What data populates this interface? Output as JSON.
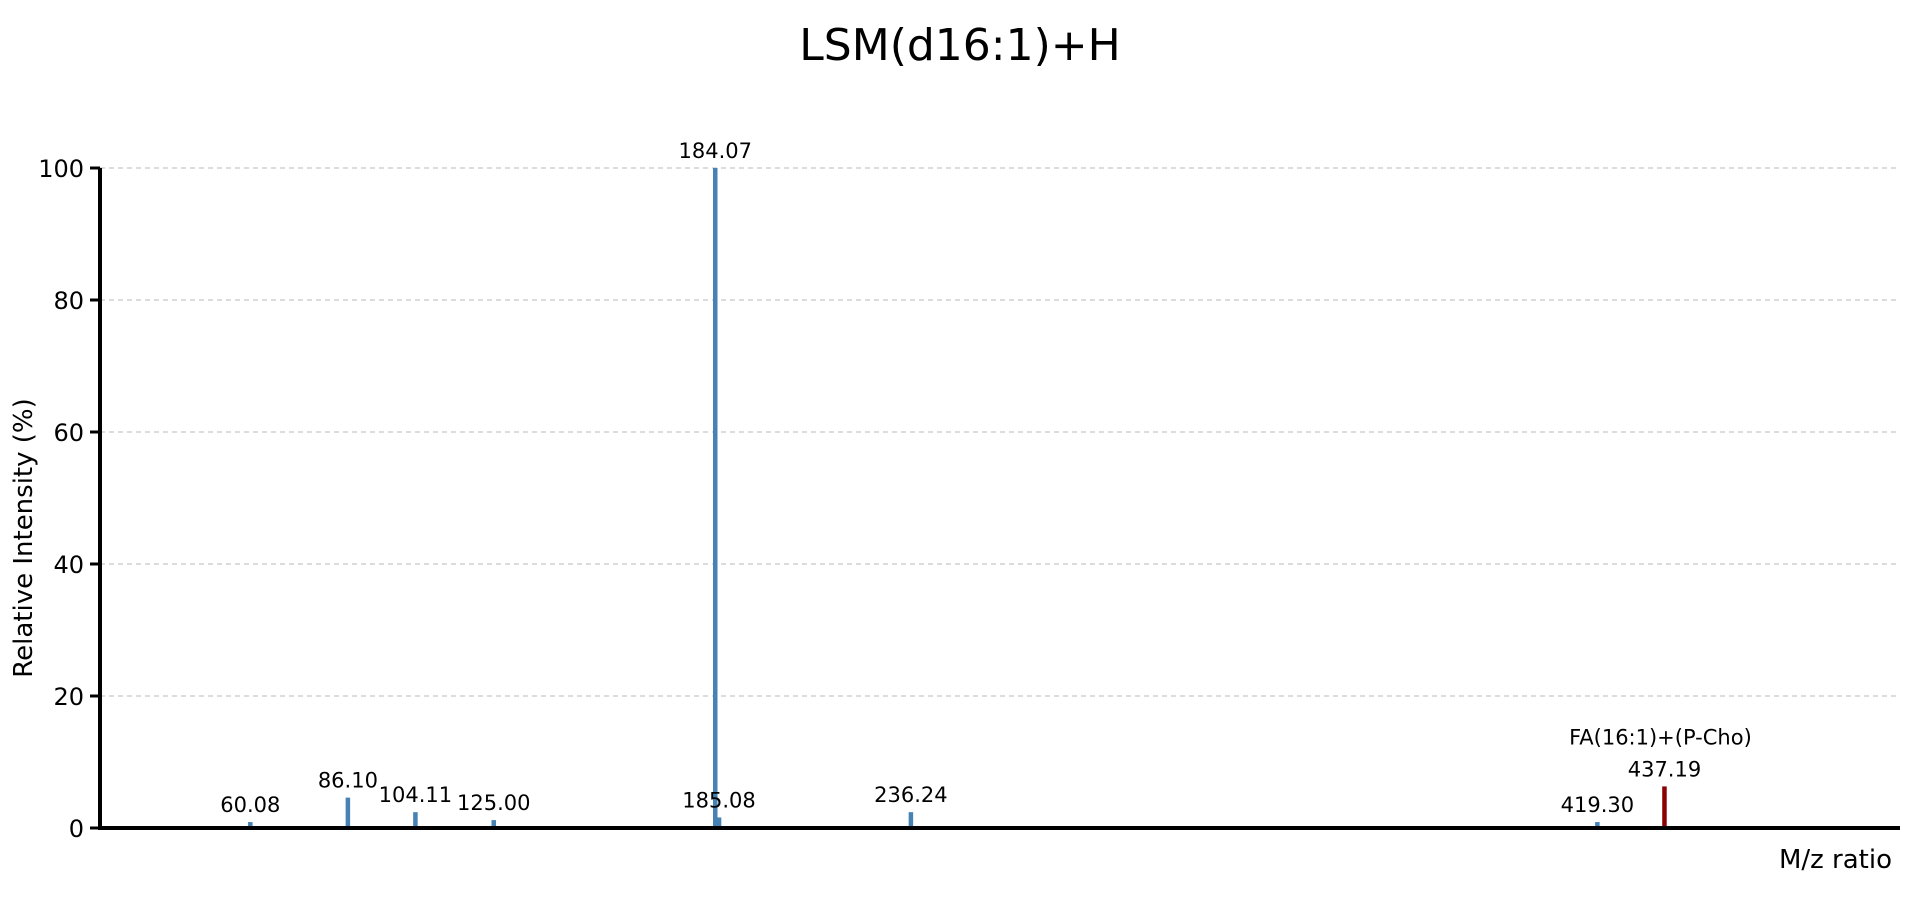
{
  "chart_data": {
    "type": "bar",
    "title": "LSM(d16:1)+H",
    "xlabel": "M/z ratio",
    "ylabel": "Relative Intensity (%)",
    "ylim": [
      0,
      100
    ],
    "xlim": [
      20,
      500
    ],
    "yticks": [
      0,
      20,
      40,
      60,
      80,
      100
    ],
    "grid": true,
    "peaks": [
      {
        "mz": 60.08,
        "intensity": 0.9,
        "label": "60.08",
        "color": "#4682b4"
      },
      {
        "mz": 86.1,
        "intensity": 4.6,
        "label": "86.10",
        "color": "#4682b4"
      },
      {
        "mz": 104.11,
        "intensity": 2.4,
        "label": "104.11",
        "color": "#4682b4"
      },
      {
        "mz": 125.0,
        "intensity": 1.2,
        "label": "125.00",
        "color": "#4682b4"
      },
      {
        "mz": 184.07,
        "intensity": 100,
        "label": "184.07",
        "color": "#4682b4"
      },
      {
        "mz": 185.08,
        "intensity": 1.6,
        "label": "185.08",
        "color": "#4682b4"
      },
      {
        "mz": 236.24,
        "intensity": 2.4,
        "label": "236.24",
        "color": "#4682b4"
      },
      {
        "mz": 419.3,
        "intensity": 0.9,
        "label": "419.30",
        "color": "#4682b4"
      },
      {
        "mz": 437.19,
        "intensity": 6.3,
        "label": "437.19",
        "annotation": "FA(16:1)+(P-Cho)",
        "color": "#8b0000"
      }
    ]
  }
}
